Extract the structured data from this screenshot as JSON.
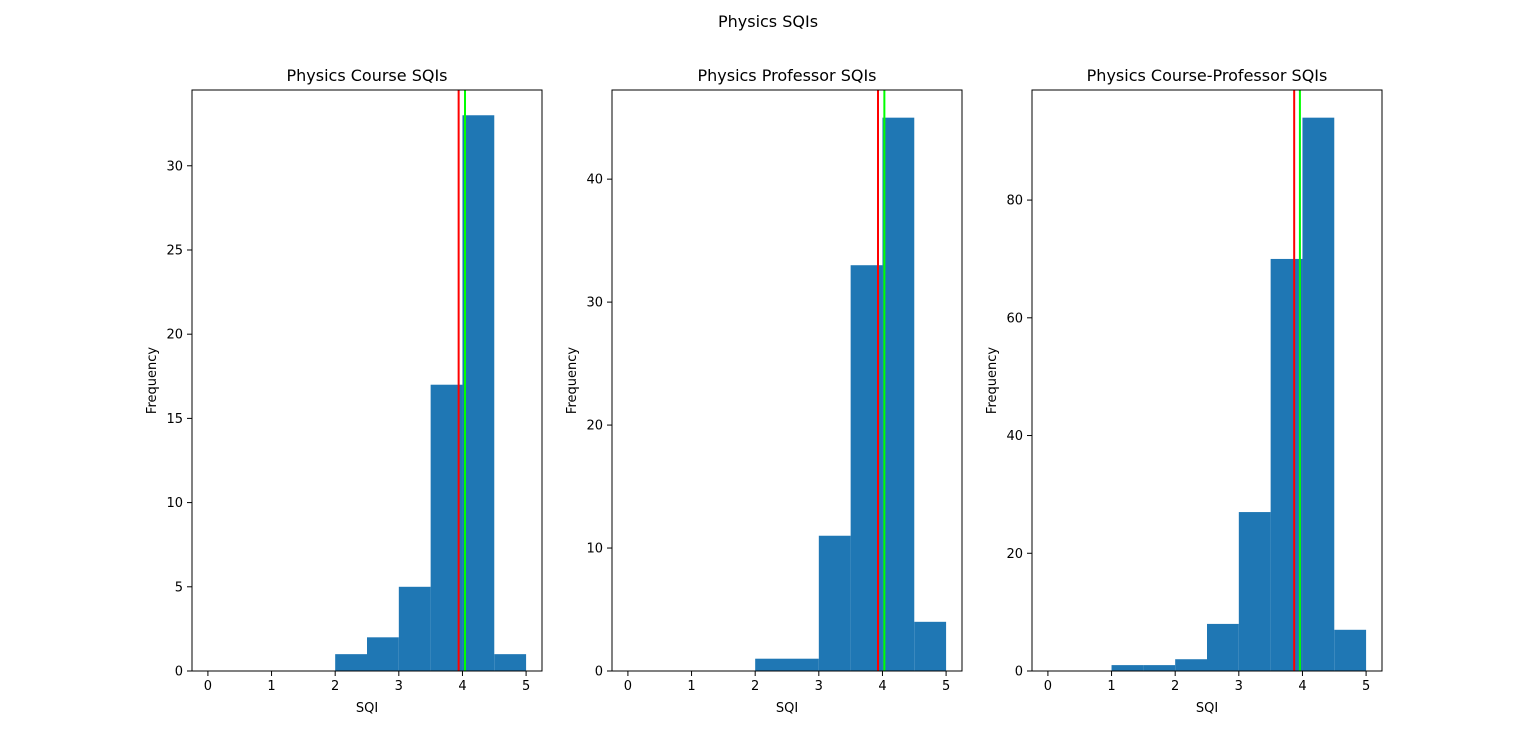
{
  "figure": {
    "suptitle": "Physics SQIs"
  },
  "colors": {
    "bar": "#1f77b4",
    "median_line": "#ff0000",
    "mean_line": "#00ff00",
    "axis": "#000000",
    "background": "#ffffff"
  },
  "chart_data": [
    {
      "type": "bar",
      "title": "Physics Course SQIs",
      "xlabel": "SQI",
      "ylabel": "Frequency",
      "xlim": [
        -0.25,
        5.25
      ],
      "ylim": [
        0,
        34.5
      ],
      "xticks": [
        0,
        1,
        2,
        3,
        4,
        5
      ],
      "yticks": [
        0,
        5,
        10,
        15,
        20,
        25,
        30
      ],
      "bin_edges": [
        0,
        0.5,
        1,
        1.5,
        2,
        2.5,
        3,
        3.5,
        4,
        4.5,
        5
      ],
      "values": [
        0,
        0,
        0,
        0,
        1,
        2,
        5,
        17,
        33,
        1
      ],
      "vlines": [
        {
          "x": 3.94,
          "color": "#ff0000"
        },
        {
          "x": 4.04,
          "color": "#00ff00"
        }
      ],
      "grid": false
    },
    {
      "type": "bar",
      "title": "Physics Professor SQIs",
      "xlabel": "SQI",
      "ylabel": "Frequency",
      "xlim": [
        -0.25,
        5.25
      ],
      "ylim": [
        0,
        47.25
      ],
      "xticks": [
        0,
        1,
        2,
        3,
        4,
        5
      ],
      "yticks": [
        0,
        10,
        20,
        30,
        40
      ],
      "bin_edges": [
        0,
        0.5,
        1,
        1.5,
        2,
        2.5,
        3,
        3.5,
        4,
        4.5,
        5
      ],
      "values": [
        0,
        0,
        0,
        0,
        1,
        1,
        11,
        33,
        45,
        4
      ],
      "vlines": [
        {
          "x": 3.93,
          "color": "#ff0000"
        },
        {
          "x": 4.03,
          "color": "#00ff00"
        }
      ],
      "grid": false
    },
    {
      "type": "bar",
      "title": "Physics Course-Professor SQIs",
      "xlabel": "SQI",
      "ylabel": "Frequency",
      "xlim": [
        -0.25,
        5.25
      ],
      "ylim": [
        0,
        98.7
      ],
      "xticks": [
        0,
        1,
        2,
        3,
        4,
        5
      ],
      "yticks": [
        0,
        20,
        40,
        60,
        80
      ],
      "bin_edges": [
        0,
        0.5,
        1,
        1.5,
        2,
        2.5,
        3,
        3.5,
        4,
        4.5,
        5
      ],
      "values": [
        0,
        0,
        1,
        1,
        2,
        8,
        27,
        70,
        94,
        7
      ],
      "vlines": [
        {
          "x": 3.87,
          "color": "#ff0000"
        },
        {
          "x": 3.96,
          "color": "#00ff00"
        }
      ],
      "grid": false
    }
  ]
}
